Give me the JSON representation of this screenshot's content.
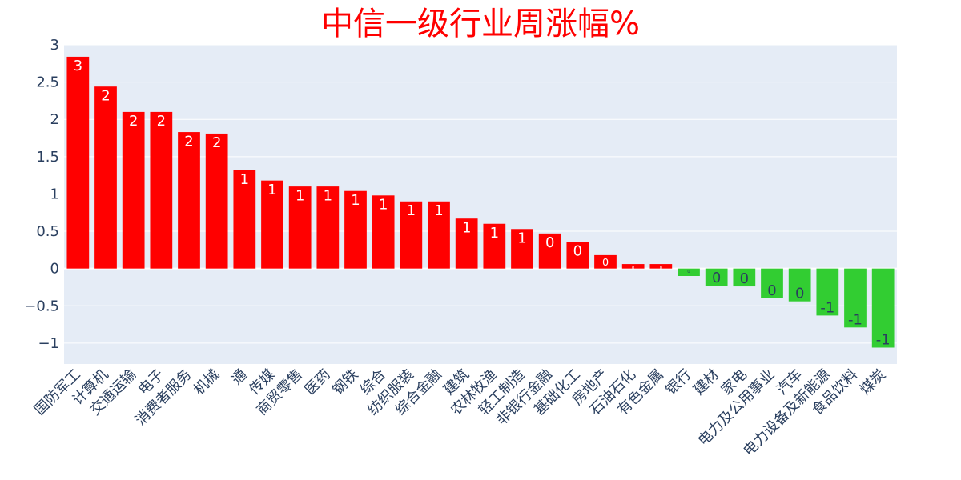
{
  "colors": {
    "positive": "#ff0000",
    "negative": "#32cd32",
    "plot_background": "#e5ecf6",
    "grid": "#ffffff",
    "title": "#ff0000",
    "axis_text": "#2a3f5f"
  },
  "chart_data": {
    "type": "bar",
    "title": "中信一级行业周涨幅%",
    "xlabel": "",
    "ylabel": "",
    "ylim": [
      -1.28,
      3.0
    ],
    "yticks": [
      3,
      2.5,
      2,
      1.5,
      1,
      0.5,
      0,
      -0.5,
      -1
    ],
    "ytick_labels": [
      "3",
      "2.5",
      "2",
      "1.5",
      "1",
      "0.5",
      "0",
      "−0.5",
      "−1"
    ],
    "grid": true,
    "legend": "none",
    "categories": [
      "国防军工",
      "计算机",
      "交通运输",
      "电子",
      "消费者服务",
      "机械",
      "通",
      "传媒",
      "商贸零售",
      "医药",
      "钢铁",
      "综合",
      "纺织服装",
      "综合金融",
      "建筑",
      "农林牧渔",
      "轻工制造",
      "非银行金融",
      "基础化工",
      "房地产",
      "石油石化",
      "有色金属",
      "银行",
      "建材",
      "家电",
      "电力及公用事业",
      "汽车",
      "电力设备及新能源",
      "食品饮料",
      "煤炭"
    ],
    "values": [
      2.84,
      2.44,
      2.1,
      2.1,
      1.83,
      1.81,
      1.32,
      1.18,
      1.1,
      1.1,
      1.04,
      0.98,
      0.9,
      0.9,
      0.67,
      0.6,
      0.53,
      0.47,
      0.36,
      0.18,
      0.06,
      0.06,
      -0.1,
      -0.23,
      -0.24,
      -0.4,
      -0.44,
      -0.63,
      -0.79,
      -1.06
    ],
    "data_labels": [
      "3",
      "2",
      "2",
      "2",
      "2",
      "2",
      "1",
      "1",
      "1",
      "1",
      "1",
      "1",
      "1",
      "1",
      "1",
      "1",
      "1",
      "0",
      "0",
      "0",
      "0",
      "0",
      "0",
      "0",
      "0",
      "0",
      "0",
      "-1",
      "-1",
      "-1"
    ]
  }
}
